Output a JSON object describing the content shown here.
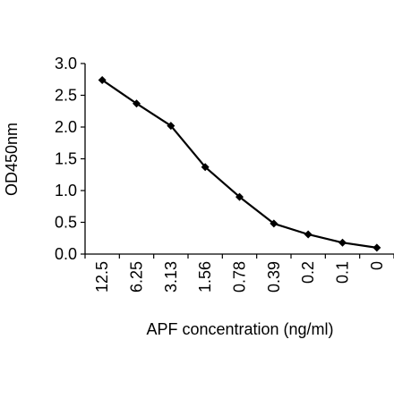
{
  "chart_data": {
    "type": "line",
    "title": "",
    "xlabel": "APF concentration (ng/ml)",
    "ylabel": "OD450nm",
    "categories": [
      "12.5",
      "6.25",
      "3.13",
      "1.56",
      "0.78",
      "0.39",
      "0.2",
      "0.1",
      "0"
    ],
    "series": [
      {
        "values": [
          2.74,
          2.37,
          2.02,
          1.37,
          0.9,
          0.48,
          0.31,
          0.18,
          0.1
        ]
      }
    ],
    "yticks": [
      "0.0",
      "0.5",
      "1.0",
      "1.5",
      "2.0",
      "2.5",
      "3.0"
    ],
    "ylim": [
      0,
      3.0
    ],
    "grid": false,
    "legend": "none",
    "marker": "diamond",
    "line_color": "#000000"
  }
}
